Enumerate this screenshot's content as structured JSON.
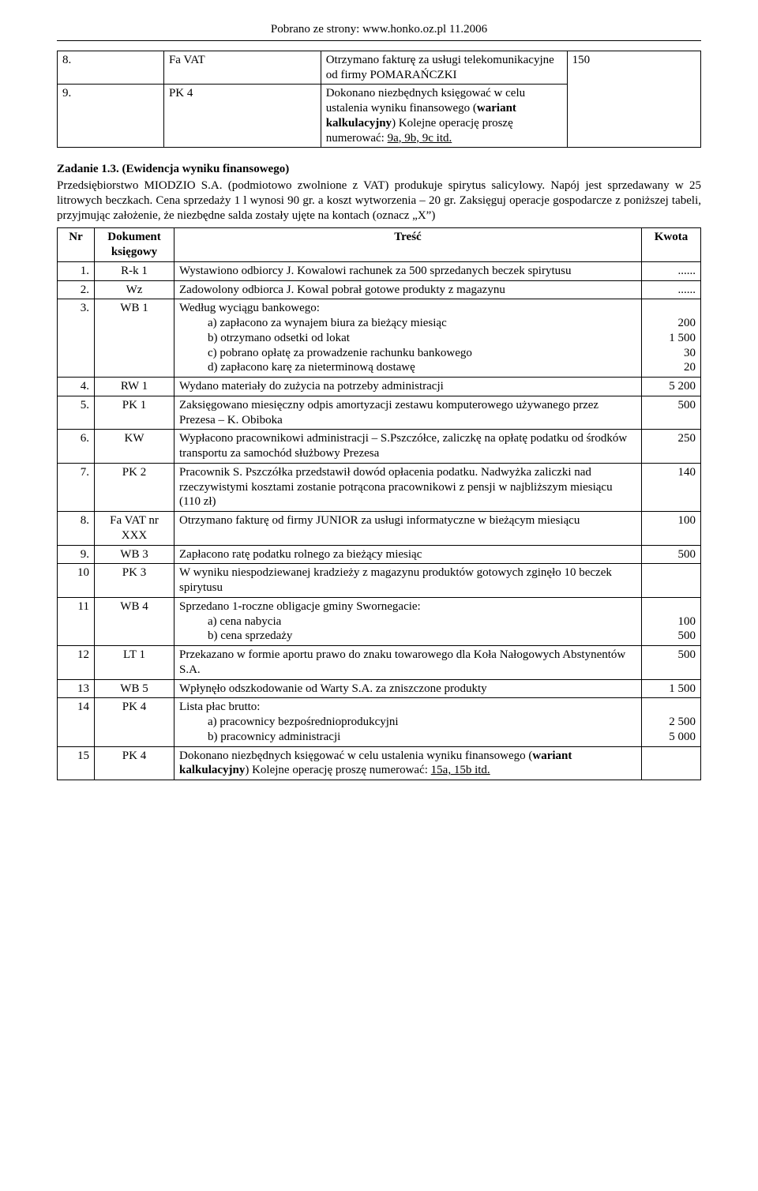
{
  "header": "Pobrano ze strony: www.honko.oz.pl 11.2006",
  "top_table": {
    "rows": [
      {
        "nr": "8.",
        "doc": "Fa VAT",
        "tresc": "Otrzymano fakturę za usługi telekomunikacyjne od firmy POMARAŃCZKI",
        "kwota": "150"
      },
      {
        "nr": "9.",
        "doc": "PK 4",
        "tresc_pre": "Dokonano niezbędnych księgować w celu ustalenia wyniku finansowego (",
        "tresc_bold": "wariant kalkulacyjny",
        "tresc_post": ") Kolejne operację proszę numerować: ",
        "tresc_u": "9a, 9b, 9c itd.",
        "kwota": ""
      }
    ]
  },
  "section": {
    "title": "Zadanie 1.3. (Ewidencja wyniku finansowego)",
    "body": "Przedsiębiorstwo MIODZIO S.A. (podmiotowo zwolnione z VAT) produkuje spirytus salicylowy. Napój jest sprzedawany w 25 litrowych beczkach. Cena sprzedaży 1 l wynosi 90 gr. a koszt wytworzenia – 20 gr. Zaksięguj operacje gospodarcze z poniższej tabeli, przyjmując założenie, że niezbędne salda zostały ujęte na kontach (oznacz „X”)"
  },
  "main_table": {
    "headers": {
      "nr": "Nr",
      "doc": "Dokument księgowy",
      "tresc": "Treść",
      "kwota": "Kwota"
    },
    "rows": [
      {
        "nr": "1.",
        "doc": "R-k 1",
        "tresc": "Wystawiono odbiorcy J. Kowalowi rachunek za 500 sprzedanych beczek spirytusu",
        "kwota": "......"
      },
      {
        "nr": "2.",
        "doc": "Wz",
        "tresc": "Zadowolony odbiorca J. Kowal pobrał gotowe produkty z magazynu",
        "kwota": "......"
      },
      {
        "nr": "3.",
        "doc": "WB 1",
        "tresc_main": "Według wyciągu bankowego:",
        "sub": [
          "a)  zapłacono za wynajem biura za bieżący miesiąc",
          "b)  otrzymano odsetki od lokat",
          "c)  pobrano opłatę za prowadzenie rachunku bankowego",
          "d)  zapłacono karę za nieterminową dostawę"
        ],
        "kwota_multi": [
          "",
          "200",
          "1 500",
          "30",
          "20"
        ]
      },
      {
        "nr": "4.",
        "doc": "RW 1",
        "tresc": "Wydano materiały do zużycia na potrzeby administracji",
        "kwota": "5 200"
      },
      {
        "nr": "5.",
        "doc": "PK 1",
        "tresc": "Zaksięgowano miesięczny odpis amortyzacji zestawu komputerowego używanego przez Prezesa – K. Obiboka",
        "kwota": "500"
      },
      {
        "nr": "6.",
        "doc": "KW",
        "tresc": "Wypłacono pracownikowi administracji – S.Pszczółce, zaliczkę na opłatę podatku od środków transportu za samochód służbowy Prezesa",
        "kwota": "250"
      },
      {
        "nr": "7.",
        "doc": "PK 2",
        "tresc": "Pracownik S. Pszczółka przedstawił dowód opłacenia podatku. Nadwyżka zaliczki nad rzeczywistymi kosztami zostanie potrącona pracownikowi z pensji w najbliższym miesiącu (110 zł)",
        "kwota": "140"
      },
      {
        "nr": "8.",
        "doc": "Fa VAT nr XXX",
        "tresc": "Otrzymano fakturę od firmy JUNIOR za usługi informatyczne w bieżącym miesiącu",
        "kwota": "100"
      },
      {
        "nr": "9.",
        "doc": "WB 3",
        "tresc": "Zapłacono ratę podatku rolnego za bieżący miesiąc",
        "kwota": "500"
      },
      {
        "nr": "10",
        "doc": "PK 3",
        "tresc": "W wyniku niespodziewanej kradzieży z magazynu produktów gotowych zginęło 10 beczek spirytusu",
        "kwota": ""
      },
      {
        "nr": "11",
        "doc": "WB 4",
        "tresc_main": "Sprzedano 1-roczne obligacje gminy Swornegacie:",
        "sub": [
          "a)  cena nabycia",
          "b)  cena sprzedaży"
        ],
        "kwota_multi": [
          "",
          "100",
          "500"
        ]
      },
      {
        "nr": "12",
        "doc": "LT 1",
        "tresc": "Przekazano w formie aportu prawo do znaku towarowego dla Koła Nałogowych Abstynentów S.A.",
        "kwota": "500"
      },
      {
        "nr": "13",
        "doc": "WB 5",
        "tresc": "Wpłynęło odszkodowanie od Warty S.A. za zniszczone produkty",
        "kwota": "1 500"
      },
      {
        "nr": "14",
        "doc": "PK 4",
        "tresc_main": "Lista płac brutto:",
        "sub": [
          "a)  pracownicy bezpośrednioprodukcyjni",
          "b)  pracownicy administracji"
        ],
        "kwota_multi": [
          "",
          "2 500",
          "5 000"
        ]
      },
      {
        "nr": "15",
        "doc": "PK 4",
        "tresc_pre": "Dokonano niezbędnych księgować w celu ustalenia wyniku finansowego (",
        "tresc_bold": "wariant kalkulacyjny",
        "tresc_post": ") Kolejne operację proszę numerować: ",
        "tresc_u": "15a, 15b itd.",
        "kwota": ""
      }
    ]
  }
}
